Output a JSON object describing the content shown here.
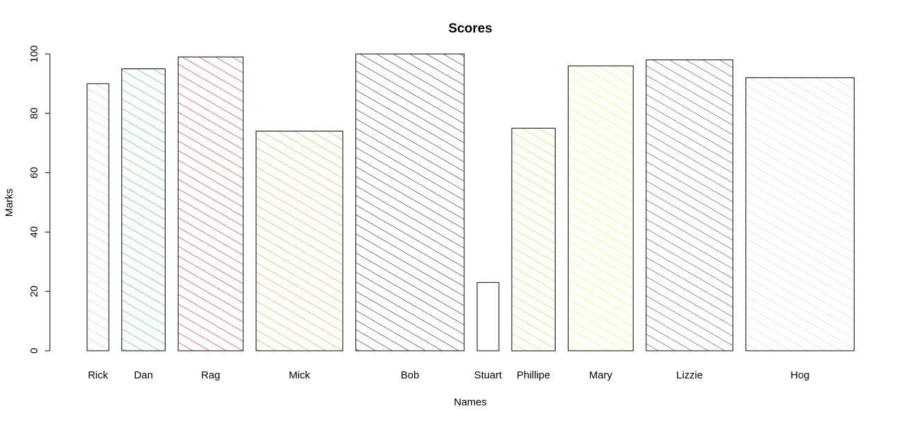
{
  "chart_data": {
    "type": "bar",
    "title": "Scores",
    "xlabel": "Names",
    "ylabel": "Marks",
    "ylim": [
      0,
      100
    ],
    "yticks": [
      0,
      20,
      40,
      60,
      80,
      100
    ],
    "grid": false,
    "legend": "none",
    "categories": [
      "Rick",
      "Dan",
      "Rag",
      "Mick",
      "Bob",
      "Stuart",
      "Phillipe",
      "Mary",
      "Lizzie",
      "Hog"
    ],
    "values": [
      90,
      95,
      99,
      74,
      100,
      23,
      75,
      96,
      98,
      92
    ],
    "hatch_colors": [
      "#a6cee3",
      "#00cc33",
      "#cc0000",
      "#e69a00",
      "#000000",
      "#000000",
      "#e6c800",
      "#ffee00",
      "#6b1a1a",
      "#f4c2cc"
    ],
    "hatched": [
      true,
      true,
      true,
      true,
      true,
      false,
      true,
      true,
      true,
      true
    ],
    "relative_widths": [
      1,
      2,
      3,
      4,
      5,
      1,
      2,
      3,
      4,
      5
    ]
  }
}
